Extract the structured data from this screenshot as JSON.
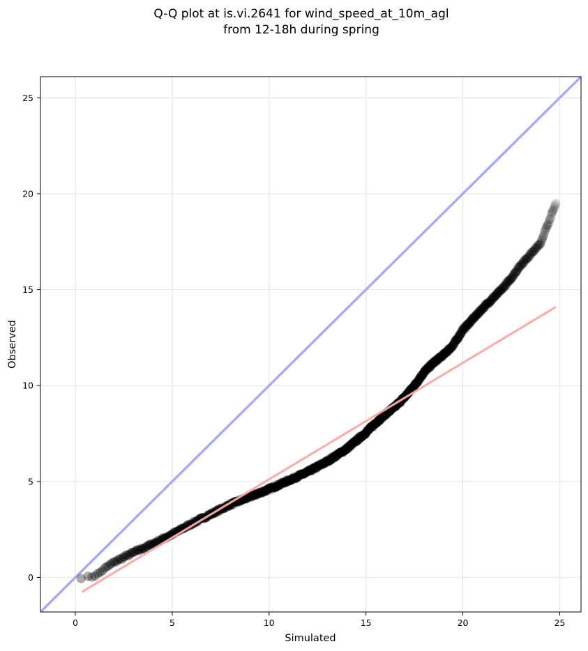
{
  "chart_data": {
    "type": "scatter",
    "title": "Q-Q plot at is.vi.2641 for wind_speed_at_10m_agl",
    "subtitle": "from 12-18h during spring",
    "xlabel": "Simulated",
    "ylabel": "Observed",
    "xlim": [
      -1.8,
      26.1
    ],
    "ylim": [
      -1.8,
      26.1
    ],
    "xticks": [
      0,
      5,
      10,
      15,
      20,
      25
    ],
    "yticks": [
      0,
      5,
      10,
      15,
      20,
      25
    ],
    "grid": true,
    "colors": {
      "points": "#000000",
      "identity_line": "#aaaaf2",
      "fit_line": "#f5aaaa"
    },
    "identity_line": {
      "x": [
        -1.8,
        26.1
      ],
      "y": [
        -1.8,
        26.1
      ]
    },
    "fit_line": {
      "x": [
        0.35,
        24.8
      ],
      "y": [
        -0.75,
        14.1
      ]
    },
    "quantile_curve": {
      "x": [
        0.3,
        0.6,
        0.9,
        1.2,
        1.5,
        2.0,
        3.0,
        4.0,
        5.0,
        6.0,
        7.0,
        8.0,
        9.0,
        10.0,
        11.0,
        12.0,
        13.0,
        14.0,
        15.0,
        15.5,
        16.0,
        16.5,
        17.0,
        17.5,
        18.0,
        18.5,
        19.0,
        19.5,
        20.0,
        20.5,
        21.0,
        21.5,
        22.0,
        22.5,
        23.0,
        24.0,
        24.8
      ],
      "y": [
        0.0,
        0.0,
        0.05,
        0.2,
        0.45,
        0.8,
        1.3,
        1.75,
        2.25,
        2.8,
        3.3,
        3.8,
        4.2,
        4.6,
        5.05,
        5.5,
        6.05,
        6.7,
        7.55,
        8.05,
        8.5,
        8.9,
        9.4,
        10.0,
        10.7,
        11.2,
        11.6,
        12.1,
        12.9,
        13.45,
        14.0,
        14.5,
        15.0,
        15.6,
        16.3,
        17.4,
        19.5
      ]
    }
  }
}
